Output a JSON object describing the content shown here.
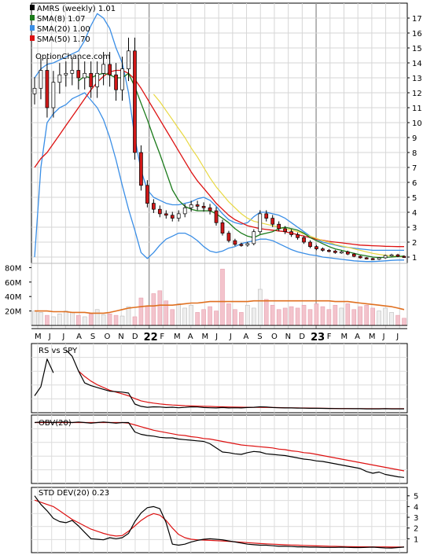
{
  "chart_data": [
    {
      "type": "candlestick",
      "ticker": "AMRS",
      "legend": [
        {
          "label": "AMRS (weekly) 1.01",
          "color": "#000000"
        },
        {
          "label": "SMA(8) 1.07",
          "color": "#1a7a1a"
        },
        {
          "label": "SMA(20) 1.00",
          "color": "#3a8ee6"
        },
        {
          "label": "SMA(50) 1.70",
          "color": "#dd1111"
        }
      ],
      "watermark": "OptionChance.com",
      "y_ticks": [
        1,
        2,
        3,
        4,
        5,
        6,
        7,
        8,
        9,
        10,
        11,
        12,
        13,
        14,
        15,
        16,
        17
      ],
      "x_labels": [
        "M",
        "J",
        "J",
        "A",
        "S",
        "O",
        "N",
        "D",
        "22",
        "F",
        "M",
        "A",
        "M",
        "J",
        "J",
        "A",
        "S",
        "O",
        "N",
        "D",
        "23",
        "F",
        "M",
        "A",
        "M",
        "J",
        "J"
      ],
      "close": [
        12.3,
        13.5,
        11.0,
        12.7,
        13.2,
        13.3,
        13.5,
        13.0,
        13.3,
        12.4,
        13.3,
        13.9,
        13.2,
        12.2,
        13.6,
        14.8,
        8.0,
        5.8,
        4.6,
        4.2,
        3.9,
        3.8,
        3.6,
        3.9,
        4.3,
        4.5,
        4.4,
        4.3,
        4.1,
        3.3,
        2.6,
        2.1,
        1.85,
        1.8,
        1.9,
        2.7,
        3.9,
        3.6,
        3.2,
        2.9,
        2.7,
        2.5,
        2.3,
        2.0,
        1.7,
        1.55,
        1.45,
        1.4,
        1.3,
        1.35,
        1.2,
        1.05,
        0.95,
        0.9,
        0.85,
        0.95,
        1.1,
        1.15,
        1.05,
        1.01
      ],
      "sma8": [
        null,
        null,
        null,
        null,
        null,
        null,
        null,
        12.8,
        13.1,
        13.0,
        13.2,
        13.3,
        13.2,
        13.0,
        13.0,
        13.3,
        12.4,
        11.3,
        10.2,
        9.0,
        7.9,
        6.7,
        5.5,
        4.8,
        4.4,
        4.2,
        4.1,
        4.1,
        4.1,
        3.9,
        3.6,
        3.3,
        2.9,
        2.6,
        2.4,
        2.3,
        2.5,
        2.6,
        2.7,
        2.9,
        3.0,
        2.9,
        2.8,
        2.6,
        2.3,
        2.1,
        1.9,
        1.7,
        1.55,
        1.45,
        1.35,
        1.25,
        1.15,
        1.08,
        1.0,
        0.97,
        0.98,
        1.0,
        1.03,
        1.07
      ],
      "sma20": [
        null,
        null,
        null,
        null,
        null,
        null,
        null,
        null,
        null,
        null,
        null,
        null,
        null,
        null,
        null,
        null,
        null,
        null,
        null,
        11.9,
        11.4,
        10.8,
        10.2,
        9.6,
        9.0,
        8.3,
        7.7,
        7.0,
        6.3,
        5.7,
        5.2,
        4.7,
        4.3,
        3.9,
        3.6,
        3.4,
        3.3,
        3.2,
        3.1,
        3.0,
        2.9,
        2.8,
        2.7,
        2.55,
        2.4,
        2.25,
        2.1,
        2.0,
        1.85,
        1.75,
        1.65,
        1.55,
        1.45,
        1.35,
        1.25,
        1.18,
        1.12,
        1.08,
        1.04,
        1.0
      ],
      "sma50": [
        7.0,
        7.6,
        8.0,
        8.6,
        9.2,
        9.8,
        10.4,
        11.0,
        11.6,
        12.2,
        12.7,
        13.1,
        13.4,
        13.5,
        13.5,
        13.3,
        12.9,
        12.3,
        11.6,
        10.9,
        10.2,
        9.5,
        8.8,
        8.1,
        7.4,
        6.7,
        6.1,
        5.6,
        5.1,
        4.6,
        4.2,
        3.8,
        3.5,
        3.3,
        3.1,
        3.0,
        2.9,
        2.85,
        2.8,
        2.75,
        2.7,
        2.6,
        2.5,
        2.4,
        2.3,
        2.2,
        2.12,
        2.05,
        2.0,
        1.95,
        1.9,
        1.85,
        1.8,
        1.78,
        1.76,
        1.74,
        1.72,
        1.71,
        1.7,
        1.7
      ],
      "bb_upper": [
        13.0,
        13.6,
        13.9,
        14.0,
        14.2,
        14.4,
        14.6,
        14.8,
        15.5,
        16.5,
        17.3,
        17.0,
        16.3,
        15.0,
        14.0,
        12.0,
        9.0,
        6.8,
        5.5,
        5.0,
        4.8,
        4.6,
        4.5,
        4.5,
        4.6,
        4.7,
        4.9,
        5.0,
        4.8,
        4.4,
        3.9,
        3.5,
        3.3,
        3.2,
        3.3,
        3.7,
        4.0,
        4.0,
        3.9,
        3.8,
        3.6,
        3.3,
        3.0,
        2.7,
        2.4,
        2.2,
        2.0,
        1.9,
        1.8,
        1.7,
        1.65,
        1.6,
        1.55,
        1.5,
        1.45,
        1.45,
        1.45,
        1.45,
        1.45,
        1.45
      ],
      "bb_lower": [
        1.0,
        7.0,
        10.0,
        10.6,
        11.0,
        11.2,
        11.6,
        11.8,
        12.0,
        11.5,
        11.0,
        10.2,
        9.0,
        7.5,
        5.8,
        4.2,
        2.8,
        1.3,
        0.9,
        1.3,
        1.8,
        2.2,
        2.4,
        2.6,
        2.6,
        2.4,
        2.1,
        1.7,
        1.4,
        1.3,
        1.4,
        1.6,
        1.7,
        1.9,
        2.0,
        2.1,
        2.2,
        2.2,
        2.1,
        1.9,
        1.7,
        1.5,
        1.35,
        1.25,
        1.15,
        1.1,
        1.0,
        0.95,
        0.9,
        0.85,
        0.8,
        0.75,
        0.72,
        0.7,
        0.7,
        0.72,
        0.75,
        0.78,
        0.8,
        0.8
      ],
      "volume": {
        "y_ticks": [
          "20M",
          "40M",
          "60M",
          "80M"
        ],
        "values": [
          20,
          18,
          14,
          12,
          16,
          20,
          18,
          14,
          12,
          16,
          22,
          15,
          16,
          14,
          13,
          26,
          12,
          38,
          26,
          44,
          48,
          34,
          22,
          30,
          24,
          28,
          18,
          22,
          26,
          20,
          78,
          30,
          22,
          18,
          28,
          24,
          50,
          36,
          28,
          22,
          24,
          26,
          24,
          28,
          22,
          30,
          26,
          22,
          28,
          24,
          30,
          22,
          26,
          28,
          24,
          20,
          24,
          18,
          14,
          10
        ],
        "avg": [
          20,
          20,
          20,
          19,
          19,
          19,
          18,
          18,
          18,
          17,
          17,
          17,
          18,
          20,
          22,
          24,
          25,
          26,
          27,
          27,
          28,
          28,
          28,
          29,
          30,
          31,
          31,
          32,
          33,
          33,
          33,
          33,
          33,
          33,
          33,
          34,
          34,
          34,
          34,
          34,
          34,
          34,
          34,
          34,
          34,
          34,
          34,
          34,
          33,
          33,
          33,
          32,
          31,
          30,
          29,
          28,
          27,
          26,
          24,
          22
        ]
      }
    },
    {
      "type": "line",
      "label": "RS vs SPY",
      "series_black": [
        1.5,
        2.5,
        5.5,
        4.0,
        null,
        6.5,
        5.8,
        4.2,
        2.9,
        2.6,
        2.4,
        2.2,
        2.0,
        1.95,
        1.9,
        1.8,
        0.6,
        0.35,
        0.25,
        0.3,
        0.28,
        0.22,
        0.26,
        0.2,
        0.24,
        0.3,
        0.28,
        0.22,
        0.2,
        0.18,
        0.22,
        0.18,
        0.2,
        0.18,
        0.22,
        0.25,
        0.3,
        0.28,
        0.22,
        0.2,
        0.18,
        0.18,
        0.16,
        0.15,
        0.14,
        0.14,
        0.13,
        0.12,
        0.11,
        0.1,
        0.1,
        0.09,
        0.09,
        0.08,
        0.08,
        0.08,
        0.09,
        0.08,
        0.08,
        0.08
      ],
      "series_red": [
        null,
        null,
        null,
        null,
        null,
        null,
        null,
        4.2,
        3.6,
        3.1,
        2.7,
        2.4,
        2.1,
        1.9,
        1.7,
        1.5,
        1.2,
        0.95,
        0.8,
        0.7,
        0.62,
        0.55,
        0.5,
        0.46,
        0.42,
        0.4,
        0.38,
        0.36,
        0.34,
        0.32,
        0.3,
        0.28,
        0.27,
        0.26,
        0.25,
        0.24,
        0.24,
        0.23,
        0.22,
        0.21,
        0.2,
        0.19,
        0.18,
        0.17,
        0.16,
        0.15,
        0.14,
        0.13,
        0.12,
        0.11,
        0.11,
        0.1,
        0.1,
        0.1,
        0.09,
        0.09,
        0.09,
        0.09,
        0.09,
        0.09
      ]
    },
    {
      "type": "line",
      "label": "OBV(20)",
      "series_black": [
        98,
        99,
        99,
        98,
        99,
        99,
        98,
        99,
        98,
        97,
        98,
        99,
        98,
        97,
        98,
        98,
        82,
        78,
        76,
        75,
        73,
        72,
        72,
        70,
        69,
        68,
        67,
        66,
        62,
        55,
        48,
        47,
        45,
        44,
        47,
        49,
        48,
        45,
        44,
        43,
        42,
        40,
        38,
        36,
        35,
        33,
        32,
        30,
        28,
        26,
        24,
        22,
        20,
        15,
        12,
        14,
        10,
        8,
        6,
        5
      ],
      "series_red": [
        98,
        98,
        98,
        98,
        98,
        98,
        98,
        98,
        98,
        98,
        98,
        98,
        98,
        98,
        98,
        97,
        94,
        91,
        88,
        85,
        83,
        81,
        79,
        77,
        76,
        74,
        73,
        71,
        70,
        68,
        66,
        64,
        62,
        60,
        59,
        58,
        57,
        56,
        55,
        53,
        52,
        50,
        49,
        47,
        46,
        44,
        42,
        40,
        38,
        36,
        34,
        32,
        30,
        28,
        26,
        24,
        22,
        20,
        18,
        16
      ]
    },
    {
      "type": "line",
      "label": "STD DEV(20) 0.23",
      "y_ticks": [
        1,
        2,
        3,
        4,
        5
      ],
      "series_black": [
        5.0,
        4.2,
        3.6,
        2.9,
        2.6,
        2.5,
        2.7,
        2.2,
        1.6,
        1.0,
        0.95,
        0.9,
        1.1,
        1.0,
        1.1,
        1.5,
        2.6,
        3.4,
        3.9,
        4.0,
        3.8,
        2.5,
        0.5,
        0.4,
        0.5,
        0.7,
        0.85,
        0.95,
        1.0,
        0.95,
        0.9,
        0.8,
        0.7,
        0.6,
        0.5,
        0.45,
        0.4,
        0.4,
        0.35,
        0.3,
        0.3,
        0.28,
        0.25,
        0.25,
        0.22,
        0.22,
        0.2,
        0.2,
        0.2,
        0.22,
        0.2,
        0.18,
        0.18,
        0.2,
        0.22,
        0.18,
        0.15,
        0.14,
        0.18,
        0.23
      ],
      "series_red": [
        4.6,
        4.4,
        4.2,
        4.0,
        3.6,
        3.2,
        2.8,
        2.5,
        2.2,
        1.9,
        1.7,
        1.5,
        1.35,
        1.25,
        1.3,
        1.7,
        2.2,
        2.7,
        3.1,
        3.35,
        3.2,
        2.7,
        2.0,
        1.4,
        1.1,
        0.95,
        0.9,
        0.88,
        0.85,
        0.82,
        0.8,
        0.76,
        0.72,
        0.68,
        0.64,
        0.6,
        0.56,
        0.53,
        0.5,
        0.47,
        0.44,
        0.42,
        0.4,
        0.38,
        0.36,
        0.34,
        0.32,
        0.3,
        0.29,
        0.28,
        0.27,
        0.26,
        0.25,
        0.25,
        0.24,
        0.24,
        0.24,
        0.23,
        0.23,
        0.23
      ]
    }
  ]
}
